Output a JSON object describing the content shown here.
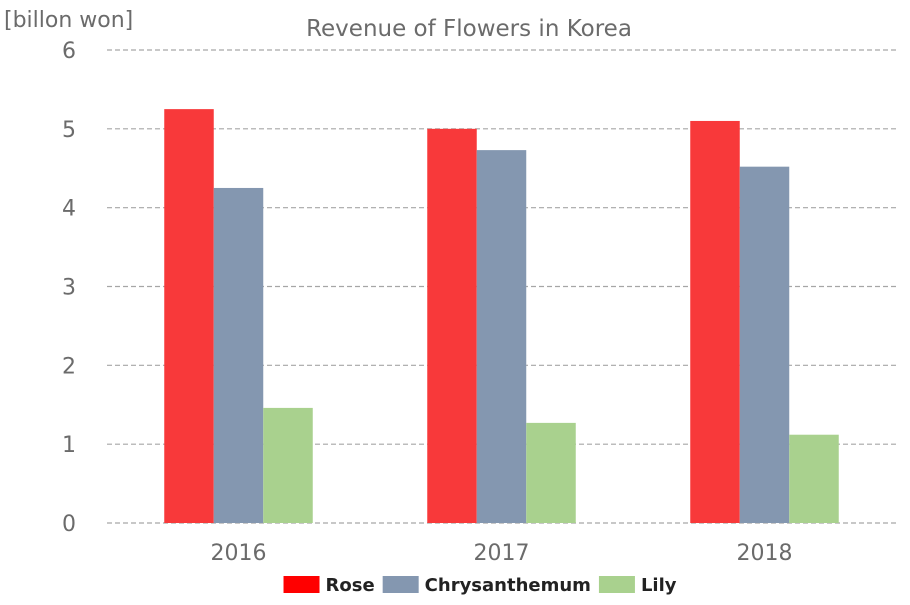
{
  "chart_data": {
    "type": "bar",
    "title": "Revenue of Flowers in Korea",
    "ylabel": "[billon won]",
    "xlabel": "",
    "categories": [
      "2016",
      "2017",
      "2018"
    ],
    "series": [
      {
        "name": "Rose",
        "values": [
          5.25,
          5.0,
          5.1
        ],
        "color": "#f8393a"
      },
      {
        "name": "Chrysanthemum",
        "values": [
          4.25,
          4.73,
          4.52
        ],
        "color": "#8497b0"
      },
      {
        "name": "Lily",
        "values": [
          1.46,
          1.27,
          1.12
        ],
        "color": "#a9d18e"
      }
    ],
    "ylim": [
      0,
      6
    ],
    "yticks": [
      "0",
      "1",
      "2",
      "3",
      "4",
      "5",
      "6"
    ],
    "grid": true,
    "legend_position": "bottom"
  },
  "colors": {
    "legend_rose_swatch": "#ff0000"
  }
}
